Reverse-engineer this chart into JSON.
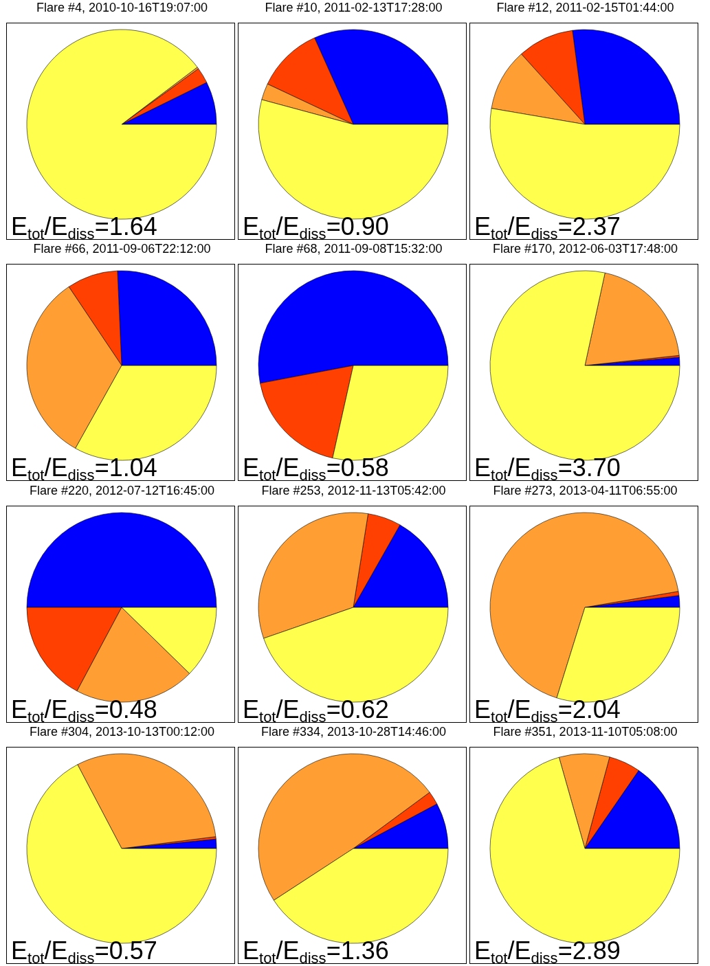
{
  "chart_data": [
    {
      "type": "pie",
      "title": "Flare #4, 2010-10-16T19:07:00",
      "categories": [
        null,
        null,
        null,
        null
      ],
      "values": [
        7.3,
        2.7,
        0.3,
        89.7
      ],
      "colors": [
        "#0000ff",
        "#ff4000",
        "#ff9f33",
        "#ffff4d"
      ],
      "annotations": [
        "E$_{tot}$/E$_{diss}$=1.64"
      ]
    },
    {
      "type": "pie",
      "title": "Flare #10, 2011-02-13T17:28:00",
      "categories": [
        null,
        null,
        null,
        null
      ],
      "values": [
        31.7,
        11.3,
        2.8,
        54.2
      ],
      "colors": [
        "#0000ff",
        "#ff4000",
        "#ff9f33",
        "#ffff4d"
      ],
      "annotations": [
        "E$_{tot}$/E$_{diss}$=0.90"
      ]
    },
    {
      "type": "pie",
      "title": "Flare #12, 2011-02-15T01:44:00",
      "categories": [
        null,
        null,
        null,
        null
      ],
      "values": [
        27.1,
        9.6,
        10.6,
        52.7
      ],
      "colors": [
        "#0000ff",
        "#ff4000",
        "#ff9f33",
        "#ffff4d"
      ],
      "annotations": [
        "E$_{tot}$/E$_{diss}$=2.37"
      ]
    },
    {
      "type": "pie",
      "title": "Flare #66, 2011-09-06T22:12:00",
      "categories": [
        null,
        null,
        null,
        null
      ],
      "values": [
        25.7,
        8.7,
        32.5,
        33.1
      ],
      "colors": [
        "#0000ff",
        "#ff4000",
        "#ff9f33",
        "#ffff4d"
      ],
      "annotations": [
        "E$_{tot}$/E$_{diss}$=1.04"
      ]
    },
    {
      "type": "pie",
      "title": "Flare #68, 2011-09-08T15:32:00",
      "categories": [
        null,
        null,
        null
      ],
      "values": [
        53.0,
        18.5,
        28.5
      ],
      "colors": [
        "#0000ff",
        "#ff4000",
        "#ffff4d"
      ],
      "annotations": [
        "E$_{tot}$/E$_{diss}$=0.58"
      ]
    },
    {
      "type": "pie",
      "title": "Flare #170, 2012-06-03T17:48:00",
      "categories": [
        null,
        null,
        null,
        null
      ],
      "values": [
        1.4,
        0.3,
        19.9,
        78.4
      ],
      "colors": [
        "#0000ff",
        "#ff4000",
        "#ff9f33",
        "#ffff4d"
      ],
      "annotations": [
        "E$_{tot}$/E$_{diss}$=3.70"
      ]
    },
    {
      "type": "pie",
      "title": "Flare #220, 2012-07-12T16:45:00",
      "categories": [
        null,
        null,
        null,
        null
      ],
      "values": [
        50.0,
        17.2,
        20.5,
        12.3
      ],
      "colors": [
        "#0000ff",
        "#ff4000",
        "#ff9f33",
        "#ffff4d"
      ],
      "annotations": [
        "E$_{tot}$/E$_{diss}$=0.48"
      ]
    },
    {
      "type": "pie",
      "title": "Flare #253, 2012-11-13T05:42:00",
      "categories": [
        null,
        null,
        null,
        null
      ],
      "values": [
        16.8,
        5.7,
        32.8,
        44.7
      ],
      "colors": [
        "#0000ff",
        "#ff4000",
        "#ff9f33",
        "#ffff4d"
      ],
      "annotations": [
        "E$_{tot}$/E$_{diss}$=0.62"
      ]
    },
    {
      "type": "pie",
      "title": "Flare #273, 2013-04-11T06:55:00",
      "categories": [
        null,
        null,
        null,
        null
      ],
      "values": [
        2.0,
        0.7,
        67.5,
        29.8
      ],
      "colors": [
        "#0000ff",
        "#ff4000",
        "#ff9f33",
        "#ffff4d"
      ],
      "annotations": [
        "E$_{tot}$/E$_{diss}$=2.04"
      ]
    },
    {
      "type": "pie",
      "title": "Flare #304, 2013-10-13T00:12:00",
      "categories": [
        null,
        null,
        null,
        null
      ],
      "values": [
        1.6,
        0.4,
        30.7,
        67.3
      ],
      "colors": [
        "#0000ff",
        "#ff4000",
        "#ff9f33",
        "#ffff4d"
      ],
      "annotations": [
        "E$_{tot}$/E$_{diss}$=0.57"
      ]
    },
    {
      "type": "pie",
      "title": "Flare #334, 2013-10-28T14:46:00",
      "categories": [
        null,
        null,
        null,
        null
      ],
      "values": [
        7.8,
        2.3,
        49.1,
        40.8
      ],
      "colors": [
        "#0000ff",
        "#ff4000",
        "#ff9f33",
        "#ffff4d"
      ],
      "annotations": [
        "E$_{tot}$/E$_{diss}$=1.36"
      ]
    },
    {
      "type": "pie",
      "title": "Flare #351, 2013-11-10T05:08:00",
      "categories": [
        null,
        null,
        null,
        null
      ],
      "values": [
        15.4,
        5.4,
        8.6,
        70.6
      ],
      "colors": [
        "#0000ff",
        "#ff4000",
        "#ff9f33",
        "#ffff4d"
      ],
      "annotations": [
        "E$_{tot}$/E$_{diss}$=2.89"
      ]
    }
  ]
}
